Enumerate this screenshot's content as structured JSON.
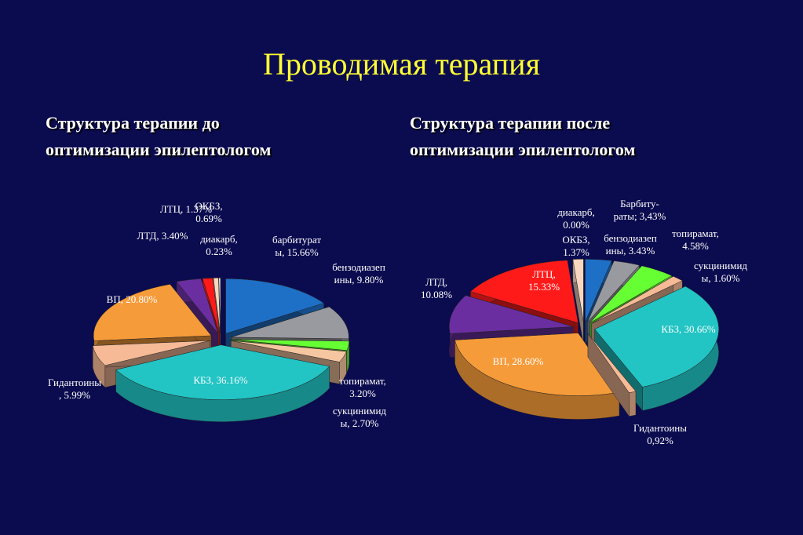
{
  "title": "Проводимая терапия",
  "left_subtitle": {
    "line1": "Структура  терапии  до",
    "line2": "оптимизации эпилептологом"
  },
  "right_subtitle": {
    "line1": "Структура  терапии   после",
    "line2": "оптимизации эпилептологом"
  },
  "chart_data": [
    {
      "type": "pie",
      "style": "3d-exploded",
      "slices": [
        {
          "name": "барбитураты",
          "value": 15.66,
          "color": "#1e6fc6",
          "labels": [
            "барбитурат",
            "ы, 15.66%"
          ]
        },
        {
          "name": "бензодиазепины",
          "value": 9.8,
          "color": "#999aa0",
          "labels": [
            "бензодиазеп",
            "ины, 9.80%"
          ]
        },
        {
          "name": "сукцинимиды",
          "value": 2.7,
          "color": "#66ff33",
          "labels": [
            "сукцинимид",
            "ы, 2.70%"
          ]
        },
        {
          "name": "топирамат",
          "value": 3.2,
          "color": "#f5c6a0",
          "labels": [
            "топирамат,",
            "3.20%"
          ]
        },
        {
          "name": "КБЗ",
          "value": 36.16,
          "color": "#22c4c4",
          "labels": [
            "КБЗ, 36.16%"
          ]
        },
        {
          "name": "Гидантоины",
          "value": 5.99,
          "color": "#f6ba96",
          "labels": [
            "Гидантоины",
            ", 5.99%"
          ]
        },
        {
          "name": "ВП",
          "value": 20.8,
          "color": "#f59b3a",
          "labels": [
            "ВП, 20.80%"
          ]
        },
        {
          "name": "ЛТД",
          "value": 3.4,
          "color": "#6a2ea0",
          "labels": [
            "ЛТД, 3.40%"
          ]
        },
        {
          "name": "ЛТЦ",
          "value": 1.37,
          "color": "#ff1a1a",
          "labels": [
            "ЛТЦ, 1.37%"
          ]
        },
        {
          "name": "ОКБЗ",
          "value": 0.69,
          "color": "#f8d6c0",
          "labels": [
            "ОКБЗ,",
            "0.69%"
          ]
        },
        {
          "name": "диакарб",
          "value": 0.23,
          "color": "#e8e8ee",
          "labels": [
            "диакарб,",
            "0.23%"
          ]
        }
      ]
    },
    {
      "type": "pie",
      "style": "3d-exploded",
      "slices": [
        {
          "name": "Барбитураты",
          "value": 3.43,
          "color": "#1e6fc6",
          "labels": [
            "Барбиту-",
            "раты; 3,43%"
          ]
        },
        {
          "name": "бензодиазепины",
          "value": 3.43,
          "color": "#999aa0",
          "labels": [
            "бензодиазеп",
            "ины, 3.43%"
          ]
        },
        {
          "name": "топирамат",
          "value": 4.58,
          "color": "#66ff33",
          "labels": [
            "топирамат,",
            "4.58%"
          ]
        },
        {
          "name": "сукцинимиды",
          "value": 1.6,
          "color": "#f6ba96",
          "labels": [
            "сукцинимид",
            "ы, 1.60%"
          ]
        },
        {
          "name": "КБЗ",
          "value": 30.66,
          "color": "#22c4c4",
          "labels": [
            "КБЗ, 30.66%"
          ]
        },
        {
          "name": "Гидантоины",
          "value": 0.92,
          "color": "#f6ba96",
          "labels": [
            "Гидантоины",
            "0,92%"
          ]
        },
        {
          "name": "ВП",
          "value": 28.6,
          "color": "#f59b3a",
          "labels": [
            "ВП, 28.60%"
          ]
        },
        {
          "name": "ЛТД",
          "value": 10.08,
          "color": "#6a2ea0",
          "labels": [
            "ЛТД,",
            "10.08%"
          ]
        },
        {
          "name": "ЛТЦ",
          "value": 15.33,
          "color": "#ff1a1a",
          "labels": [
            "ЛТЦ,",
            "15.33%"
          ]
        },
        {
          "name": "ОКБЗ",
          "value": 1.37,
          "color": "#f8d6c0",
          "labels": [
            "ОКБЗ,",
            "1.37%"
          ]
        },
        {
          "name": "диакарб",
          "value": 0.0,
          "color": "#e8e8ee",
          "labels": [
            "диакарб,",
            "0.00%"
          ]
        }
      ]
    }
  ]
}
